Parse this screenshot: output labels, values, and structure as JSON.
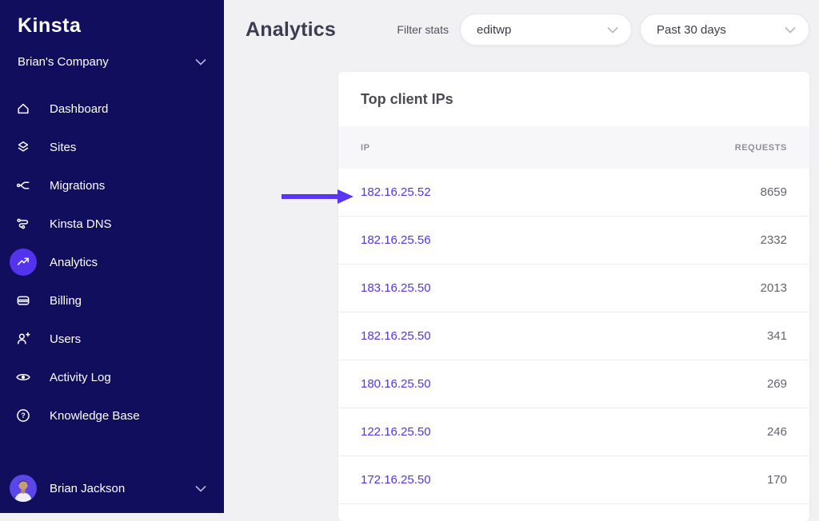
{
  "colors": {
    "accent": "#5333ed",
    "sidebar_bg": "#110e5e",
    "page_bg": "#f1f1f4",
    "arrow": "#5a36f0"
  },
  "sidebar": {
    "logo": "Kinsta",
    "company": {
      "name": "Brian's Company"
    },
    "items": [
      {
        "label": "Dashboard",
        "icon": "home-icon",
        "active": false
      },
      {
        "label": "Sites",
        "icon": "sites-icon",
        "active": false
      },
      {
        "label": "Migrations",
        "icon": "migrations-icon",
        "active": false
      },
      {
        "label": "Kinsta DNS",
        "icon": "dns-icon",
        "active": false
      },
      {
        "label": "Analytics",
        "icon": "analytics-icon",
        "active": true
      },
      {
        "label": "Billing",
        "icon": "billing-icon",
        "active": false
      },
      {
        "label": "Users",
        "icon": "users-icon",
        "active": false
      },
      {
        "label": "Activity Log",
        "icon": "activity-log-icon",
        "active": false
      },
      {
        "label": "Knowledge Base",
        "icon": "knowledge-base-icon",
        "active": false
      }
    ],
    "user": {
      "name": "Brian Jackson"
    }
  },
  "header": {
    "title": "Analytics",
    "filter_label": "Filter stats",
    "site_select": "editwp",
    "range_select": "Past 30 days"
  },
  "card": {
    "title": "Top client IPs",
    "columns": {
      "ip": "IP",
      "requests": "REQUESTS"
    },
    "rows": [
      {
        "ip": "182.16.25.52",
        "requests": "8659",
        "highlighted": true
      },
      {
        "ip": "182.16.25.56",
        "requests": "2332",
        "highlighted": false
      },
      {
        "ip": "183.16.25.50",
        "requests": "2013",
        "highlighted": false
      },
      {
        "ip": "182.16.25.50",
        "requests": "341",
        "highlighted": false
      },
      {
        "ip": "180.16.25.50",
        "requests": "269",
        "highlighted": false
      },
      {
        "ip": "122.16.25.50",
        "requests": "246",
        "highlighted": false
      },
      {
        "ip": "172.16.25.50",
        "requests": "170",
        "highlighted": false
      }
    ]
  }
}
